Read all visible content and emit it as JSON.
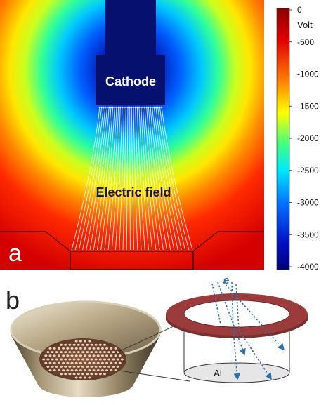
{
  "panel_a": {
    "panel_label": "a",
    "cathode_label": "Cathode",
    "field_label": "Electric field",
    "colorbar": {
      "unit": "Volt",
      "ticks": [
        "0",
        "-500",
        "-1000",
        "-1500",
        "-2000",
        "-2500",
        "-3000",
        "-3500",
        "-4000"
      ],
      "colors": {
        "low": "#0a0a7a",
        "mid_low": "#0050ff",
        "cyan": "#00e0ff",
        "green": "#30ff90",
        "yellow": "#ffff00",
        "orange": "#ff8c00",
        "red": "#e60000",
        "high": "#900000"
      }
    }
  },
  "panel_b": {
    "panel_label": "b",
    "electron_label": "e",
    "substrate_label": "Al",
    "ring_color": "#9b3b3b",
    "arrow_color": "#2b6fb3"
  }
}
